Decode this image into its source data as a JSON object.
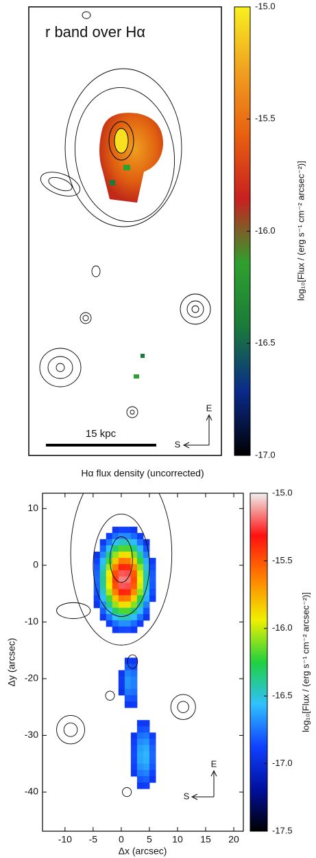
{
  "chart_data": [
    {
      "type": "image",
      "title": "r band over Hα",
      "scale_bar": "15 kpc",
      "compass": [
        "E",
        "S"
      ],
      "colorbar": {
        "label": "log₁₀[Flux / (erg s⁻¹ cm⁻² arcsec⁻²)]",
        "lim": [
          -17,
          -15
        ],
        "ticks": [
          {
            "value": -15,
            "label": "-15.0"
          },
          {
            "value": -15.5,
            "label": "-15.5"
          },
          {
            "value": -16,
            "label": "-16.0"
          },
          {
            "value": -16.5,
            "label": "-16.5"
          },
          {
            "value": -17,
            "label": "-17.0"
          }
        ],
        "colors": [
          "#000000",
          "#0a2a8a",
          "#1a7a3a",
          "#2ea02e",
          "#c82020",
          "#e86010",
          "#f0a020",
          "#f8f020"
        ]
      }
    },
    {
      "type": "image",
      "title": "Hα flux density (uncorrected)",
      "x_label": "Δx (arcsec)",
      "y_label": "Δy (arcsec)",
      "compass": [
        "E",
        "S"
      ],
      "xlim": [
        -14,
        21.7
      ],
      "ylim": [
        -46.9,
        12.7
      ],
      "xticks": [
        -10,
        -5,
        0,
        5,
        10,
        15,
        20
      ],
      "yticks": [
        10,
        0,
        -10,
        -20,
        -30,
        -40
      ],
      "colorbar": {
        "label": "log₁₀[Flux / (erg s⁻¹ cm⁻² arcsec⁻²)]",
        "lim": [
          -17.5,
          -15
        ],
        "ticks": [
          {
            "value": -15,
            "label": "-15.0"
          },
          {
            "value": -15.5,
            "label": "-15.5"
          },
          {
            "value": -16,
            "label": "-16.0"
          },
          {
            "value": -16.5,
            "label": "-16.5"
          },
          {
            "value": -17,
            "label": "-17.0"
          },
          {
            "value": -17.5,
            "label": "-17.5"
          }
        ],
        "colors": [
          "#000000",
          "#0010a0",
          "#1040ff",
          "#30c0ff",
          "#20d040",
          "#f0f000",
          "#ff8000",
          "#ff1010",
          "#f0f0f0"
        ]
      }
    }
  ]
}
